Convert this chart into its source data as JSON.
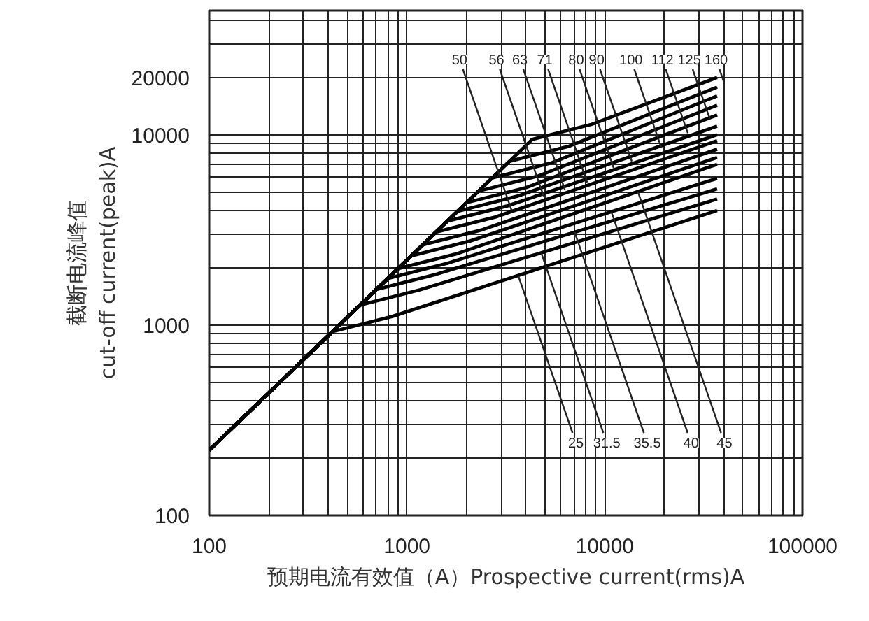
{
  "chart_data": {
    "type": "line",
    "xlabel": "预期电流有效值（A）Prospective current(rms)A",
    "ylabel": "截断电流峰值\ncut-off current(peak)A",
    "log": "xy",
    "grid": true,
    "marker": "none",
    "line_style": "solid",
    "xlim": [
      100,
      100000
    ],
    "ylim": [
      100,
      45000
    ],
    "xticks": [
      100,
      {
        "value": 200,
        "label": null
      },
      {
        "value": 300,
        "label": null
      },
      {
        "value": 400,
        "label": null
      },
      {
        "value": 500,
        "label": null
      },
      {
        "value": 600,
        "label": null
      },
      {
        "value": 700,
        "label": null
      },
      {
        "value": 800,
        "label": null
      },
      {
        "value": 900,
        "label": null
      },
      1000,
      {
        "value": 2000,
        "label": null
      },
      {
        "value": 3000,
        "label": null
      },
      {
        "value": 4000,
        "label": null
      },
      {
        "value": 5000,
        "label": null
      },
      {
        "value": 6000,
        "label": null
      },
      {
        "value": 7000,
        "label": null
      },
      {
        "value": 8000,
        "label": null
      },
      {
        "value": 9000,
        "label": null
      },
      10000,
      {
        "value": 20000,
        "label": null
      },
      {
        "value": 30000,
        "label": null
      },
      {
        "value": 40000,
        "label": null
      },
      {
        "value": 50000,
        "label": null
      },
      {
        "value": 60000,
        "label": null
      },
      {
        "value": 70000,
        "label": null
      },
      {
        "value": 80000,
        "label": null
      },
      {
        "value": 90000,
        "label": null
      },
      100000
    ],
    "yticks": [
      100,
      {
        "value": 200,
        "label": null
      },
      {
        "value": 300,
        "label": null
      },
      {
        "value": 400,
        "label": null
      },
      {
        "value": 500,
        "label": null
      },
      {
        "value": 600,
        "label": null
      },
      {
        "value": 700,
        "label": null
      },
      {
        "value": 800,
        "label": null
      },
      {
        "value": 900,
        "label": null
      },
      1000,
      {
        "value": 2000,
        "label": null
      },
      {
        "value": 3000,
        "label": null
      },
      {
        "value": 4000,
        "label": null
      },
      {
        "value": 5000,
        "label": null
      },
      {
        "value": 6000,
        "label": null
      },
      {
        "value": 7000,
        "label": null
      },
      {
        "value": 8000,
        "label": null
      },
      {
        "value": 9000,
        "label": null
      },
      10000,
      20000,
      {
        "value": 30000,
        "label": null
      },
      {
        "value": 40000,
        "label": null
      }
    ],
    "series": [
      {
        "color": "#000000",
        "x": [
          100,
          420,
          840,
          37000
        ],
        "values": [
          220,
          924,
          1109,
          4000
        ]
      },
      {
        "color": "#000000",
        "x": [
          100,
          580,
          1160,
          37000
        ],
        "values": [
          220,
          1276,
          1531,
          4600
        ]
      },
      {
        "color": "#000000",
        "x": [
          100,
          700,
          1400,
          37000
        ],
        "values": [
          220,
          1540,
          1848,
          5200
        ]
      },
      {
        "color": "#000000",
        "x": [
          100,
          800,
          1600,
          37000
        ],
        "values": [
          220,
          1760,
          2112,
          5900
        ]
      },
      {
        "color": "#000000",
        "x": [
          100,
          900,
          1800,
          37000
        ],
        "values": [
          220,
          1980,
          2376,
          7000
        ]
      },
      {
        "color": "#000000",
        "x": [
          100,
          1050,
          2100,
          37000
        ],
        "values": [
          220,
          2310,
          2772,
          7600
        ]
      },
      {
        "color": "#000000",
        "x": [
          100,
          1200,
          2400,
          37000
        ],
        "values": [
          220,
          2640,
          3168,
          8400
        ]
      },
      {
        "color": "#000000",
        "x": [
          100,
          1400,
          2800,
          37000
        ],
        "values": [
          220,
          3080,
          3696,
          9300
        ]
      },
      {
        "color": "#000000",
        "x": [
          100,
          1600,
          3200,
          37000
        ],
        "values": [
          220,
          3520,
          4224,
          10000
        ]
      },
      {
        "color": "#000000",
        "x": [
          100,
          1800,
          3600,
          37000
        ],
        "values": [
          220,
          3960,
          4752,
          11100
        ]
      },
      {
        "color": "#000000",
        "x": [
          100,
          2000,
          4000,
          37000
        ],
        "values": [
          220,
          4400,
          5280,
          12700
        ]
      },
      {
        "color": "#000000",
        "x": [
          100,
          2300,
          4600,
          37000
        ],
        "values": [
          220,
          5060,
          6072,
          14300
        ]
      },
      {
        "color": "#000000",
        "x": [
          100,
          2700,
          5400,
          37000
        ],
        "values": [
          220,
          5940,
          7128,
          16000
        ]
      },
      {
        "color": "#000000",
        "x": [
          100,
          3300,
          6600,
          37000
        ],
        "values": [
          220,
          7260,
          8712,
          17800
        ]
      },
      {
        "color": "#000000",
        "x": [
          100,
          4300,
          8600,
          37000
        ],
        "values": [
          220,
          9460,
          11350,
          20000
        ]
      }
    ],
    "annotations": [
      {
        "text": "25",
        "x": 3650,
        "y": 1824
      },
      {
        "text": "31.5",
        "x": 4770,
        "y": 2400
      },
      {
        "text": "35.5",
        "x": 7040,
        "y": 3080
      },
      {
        "text": "40",
        "x": 10800,
        "y": 3940
      },
      {
        "text": "45",
        "x": 14700,
        "y": 5030
      },
      {
        "text": "50",
        "x": 3380,
        "y": 4010
      },
      {
        "text": "56",
        "x": 4910,
        "y": 4750
      },
      {
        "text": "63",
        "x": 6280,
        "y": 5160
      },
      {
        "text": "71",
        "x": 8150,
        "y": 5620
      },
      {
        "text": "80",
        "x": 11100,
        "y": 6670
      },
      {
        "text": "90",
        "x": 13700,
        "y": 7250
      },
      {
        "text": "100",
        "x": 19300,
        "y": 8590
      },
      {
        "text": "112",
        "x": 26300,
        "y": 10200
      },
      {
        "text": "125",
        "x": 34000,
        "y": 12100
      },
      {
        "text": "160",
        "x": 40000,
        "y": 19000
      }
    ]
  }
}
